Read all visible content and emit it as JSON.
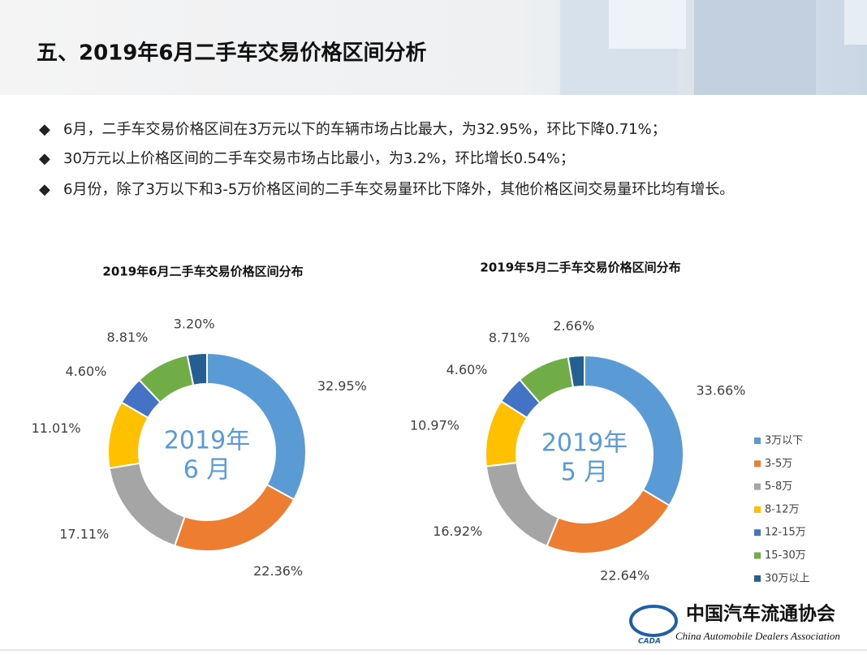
{
  "header": {
    "title": "五、2019年6月二手车交易价格区间分析"
  },
  "bullets": [
    "6月，二手车交易价格区间在3万元以下的车辆市场占比最大，为32.95%，环比下降0.71%；",
    "30万元以上价格区间的二手车交易市场占比最小，为3.2%，环比增长0.54%；",
    "6月份，除了3万以下和3-5万价格区间的二手车交易量环比下降外，其他价格区间交易量环比均有增长。"
  ],
  "chart_data": [
    {
      "type": "donut",
      "title": "2019年6月二手车交易价格区间分布",
      "center_label": [
        "2019年",
        "6 月"
      ],
      "categories": [
        "3万以下",
        "3-5万",
        "5-8万",
        "8-12万",
        "12-15万",
        "15-30万",
        "30万以上"
      ],
      "values": [
        32.95,
        22.36,
        17.11,
        11.01,
        4.6,
        8.81,
        3.2
      ],
      "value_labels": [
        "32.95%",
        "22.36%",
        "17.11%",
        "11.01%",
        "4.60%",
        "8.81%",
        "3.20%"
      ],
      "colors": [
        "#5b9bd5",
        "#ed7d31",
        "#a5a5a5",
        "#ffc000",
        "#4472c4",
        "#70ad47",
        "#255e91"
      ]
    },
    {
      "type": "donut",
      "title": "2019年5月二手车交易价格区间分布",
      "center_label": [
        "2019年",
        "5 月"
      ],
      "categories": [
        "3万以下",
        "3-5万",
        "5-8万",
        "8-12万",
        "12-15万",
        "15-30万",
        "30万以上"
      ],
      "values": [
        33.66,
        22.64,
        16.92,
        10.97,
        4.6,
        8.71,
        2.66
      ],
      "value_labels": [
        "33.66%",
        "22.64%",
        "16.92%",
        "10.97%",
        "4.60%",
        "8.71%",
        "2.66%"
      ],
      "colors": [
        "#5b9bd5",
        "#ed7d31",
        "#a5a5a5",
        "#ffc000",
        "#4472c4",
        "#70ad47",
        "#255e91"
      ],
      "legend": "right"
    }
  ],
  "logo": {
    "name": "中国汽车流通协会",
    "english": "China Automobile Dealers Association",
    "abbr": "CADA"
  }
}
